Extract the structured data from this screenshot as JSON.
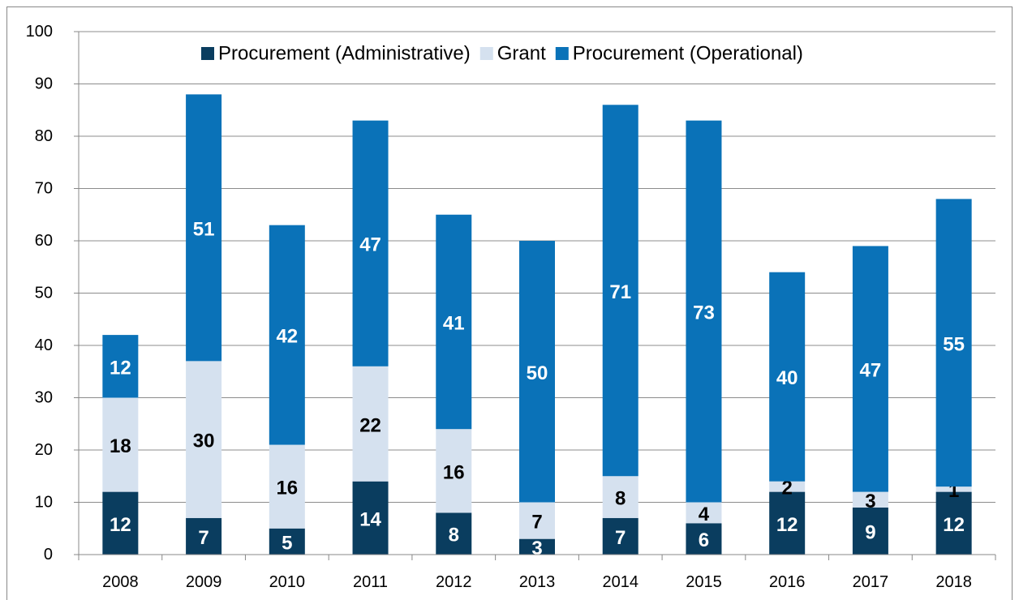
{
  "chart_data": {
    "type": "stacked_bar",
    "categories": [
      "2008",
      "2009",
      "2010",
      "2011",
      "2012",
      "2013",
      "2014",
      "2015",
      "2016",
      "2017",
      "2018"
    ],
    "series": [
      {
        "name": "Procurement (Administrative)",
        "color": "#0a3d5f",
        "label_color": "#ffffff",
        "values": [
          12,
          7,
          5,
          14,
          8,
          3,
          7,
          6,
          12,
          9,
          12
        ]
      },
      {
        "name": "Grant",
        "color": "#d5e1ef",
        "label_color": "#000000",
        "values": [
          18,
          30,
          16,
          22,
          16,
          7,
          8,
          4,
          2,
          3,
          1
        ]
      },
      {
        "name": "Procurement (Operational)",
        "color": "#0a72b8",
        "label_color": "#ffffff",
        "values": [
          12,
          51,
          42,
          47,
          41,
          50,
          71,
          73,
          40,
          47,
          55
        ]
      }
    ],
    "ylim": [
      0,
      100
    ],
    "yticks": [
      0,
      10,
      20,
      30,
      40,
      50,
      60,
      70,
      80,
      90,
      100
    ],
    "grid": true,
    "legend": "top"
  }
}
